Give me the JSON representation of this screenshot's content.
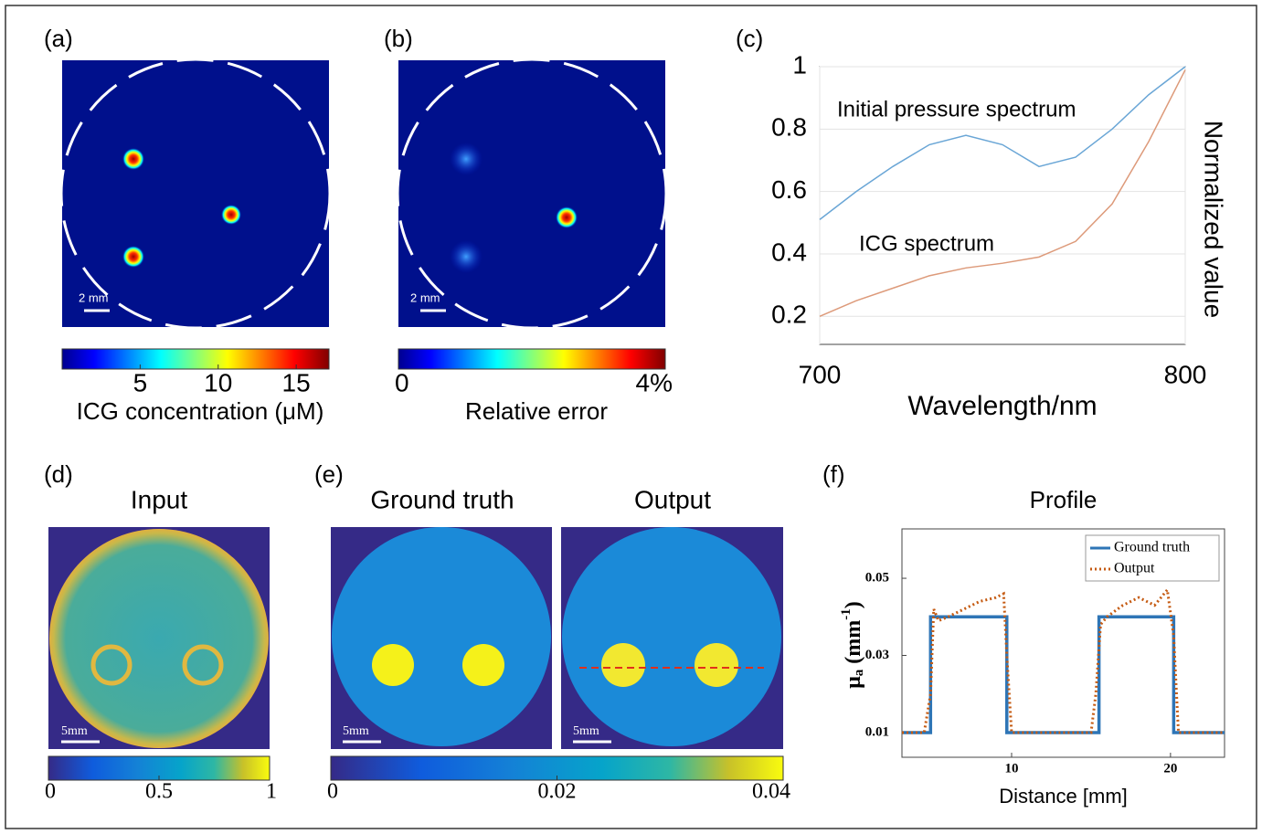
{
  "chart_data": [
    {
      "type": "colorbar-image",
      "panel_label": "(a)",
      "scale_bar": "2 mm",
      "colorbar_label": "ICG concentration (μM)",
      "colormap": "jet",
      "clim": [
        0,
        17.1
      ],
      "ticks": [
        5,
        10,
        15
      ]
    },
    {
      "type": "colorbar-image",
      "panel_label": "(b)",
      "scale_bar": "2 mm",
      "colorbar_label": "Relative error",
      "colormap": "jet",
      "clim": [
        0,
        4
      ],
      "ticks": [
        0,
        {
          "value": 4,
          "label": "4%"
        }
      ]
    },
    {
      "type": "line",
      "panel_label": "(c)",
      "xlabel": "Wavelength/nm",
      "ylabel": "Normalized value",
      "annotations": [
        "Initial pressure spectrum",
        "ICG spectrum"
      ],
      "x": [
        700,
        710,
        720,
        730,
        740,
        750,
        760,
        770,
        780,
        790,
        800
      ],
      "series": [
        {
          "color": "#6aa6d6",
          "values": [
            0.51,
            0.6,
            0.68,
            0.75,
            0.78,
            0.75,
            0.68,
            0.71,
            0.8,
            0.91,
            1.0
          ]
        },
        {
          "color": "#dd9a7a",
          "values": [
            0.2,
            0.25,
            0.29,
            0.33,
            0.355,
            0.37,
            0.39,
            0.44,
            0.56,
            0.76,
            0.99
          ]
        }
      ],
      "xlim": [
        700,
        800
      ],
      "xticks": [
        700,
        800
      ],
      "ylim": [
        0.11,
        1
      ],
      "yticks": [
        0.2,
        0.4,
        0.6,
        0.8,
        1
      ],
      "grid": true
    },
    {
      "type": "colorbar-image",
      "panel_label": "(d)",
      "titles": [
        "Input"
      ],
      "scale_bar": "5mm",
      "colormap": "parula",
      "clim": [
        0,
        1
      ],
      "ticks": [
        0,
        0.5,
        1
      ]
    },
    {
      "type": "colorbar-image",
      "panel_label": "(e)",
      "titles": [
        "Ground truth",
        "Output"
      ],
      "scale_bar": "5mm",
      "colormap": "parula",
      "clim": [
        0,
        0.04
      ],
      "ticks": [
        0,
        0.02,
        0.04
      ]
    },
    {
      "type": "line",
      "panel_label": "(f)",
      "title": "Profile",
      "xlabel": "Distance [mm]",
      "ylabel": [
        "μ",
        "a",
        " (mm",
        "-1",
        ")"
      ],
      "series": [
        {
          "name": "Ground truth",
          "color": "#2e75b6",
          "dash": "solid",
          "x": [
            3.1,
            4.9,
            4.9,
            9.7,
            9.7,
            15.5,
            15.5,
            20.2,
            20.2,
            23.4
          ],
          "values": [
            0.01,
            0.01,
            0.04,
            0.04,
            0.01,
            0.01,
            0.04,
            0.04,
            0.01,
            0.01
          ]
        },
        {
          "name": "Output",
          "color": "#c55a11",
          "dash": "dotted",
          "x": [
            3.1,
            4.5,
            4.9,
            5.1,
            5.4,
            6,
            7,
            8,
            9,
            9.5,
            9.7,
            10,
            15,
            15.3,
            15.6,
            16,
            17,
            18,
            19,
            19.8,
            20.2,
            20.5,
            23.4
          ],
          "values": [
            0.01,
            0.01,
            0.02,
            0.042,
            0.039,
            0.04,
            0.042,
            0.044,
            0.045,
            0.046,
            0.03,
            0.01,
            0.01,
            0.02,
            0.038,
            0.04,
            0.043,
            0.045,
            0.043,
            0.047,
            0.035,
            0.01,
            0.01
          ]
        }
      ],
      "xlim": [
        3.1,
        23.4
      ],
      "xticks": [
        10,
        20
      ],
      "ylim": [
        0.0036,
        0.0628
      ],
      "yticks": [
        0.01,
        0.03,
        0.05
      ],
      "legend": "upper-right"
    }
  ]
}
